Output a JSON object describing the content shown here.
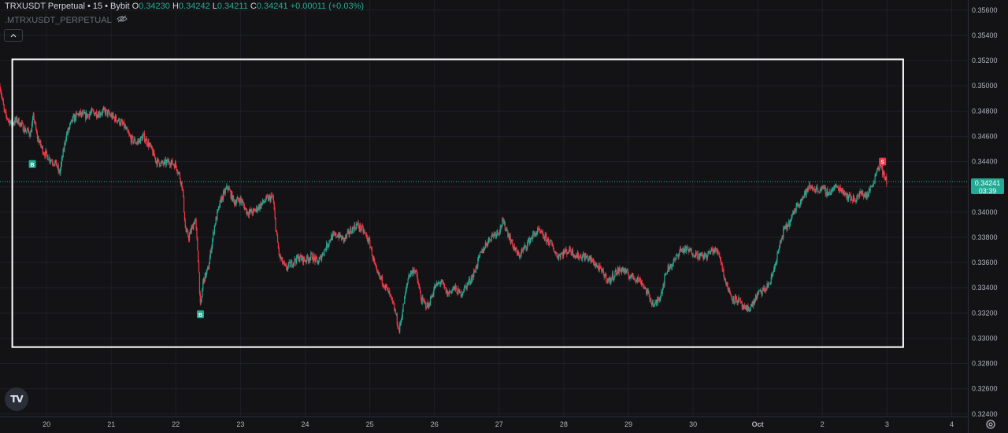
{
  "legend": {
    "symbol_line": "TRXUSDT Perpetual • 15 • Bybit",
    "open_label": "O",
    "open": "0.34230",
    "high_label": "H",
    "high": "0.34242",
    "low_label": "L",
    "low": "0.34211",
    "close_label": "C",
    "close": "0.34241",
    "change": "+0.00011 (+0.03%)",
    "indicator": ".MTRXUSDT_PERPETUAL"
  },
  "price_tag": {
    "price": "0.34241",
    "countdown": "03:39"
  },
  "logo_text": "TV",
  "colors": {
    "up": "#22ab94",
    "down": "#f23645",
    "background": "#131316",
    "grid": "#1e2027",
    "rect": "#ffffff"
  },
  "icons": [
    "eye-icon",
    "chevron-up-icon",
    "tradingview-logo",
    "gear-icon"
  ],
  "chart_data": {
    "type": "candlestick",
    "timeframe": "15",
    "y_ticks": [
      "0.35600",
      "0.35400",
      "0.35200",
      "0.35000",
      "0.34800",
      "0.34600",
      "0.34400",
      "0.34200",
      "0.34000",
      "0.33800",
      "0.33600",
      "0.33400",
      "0.33200",
      "0.33000",
      "0.32800",
      "0.32600",
      "0.32400"
    ],
    "ylim": [
      0.3238,
      0.3568
    ],
    "x_ticks": [
      "20",
      "21",
      "22",
      "23",
      "24",
      "25",
      "26",
      "27",
      "28",
      "29",
      "30",
      "Oct",
      "2",
      "3",
      "4"
    ],
    "x_tick_days": [
      20,
      21,
      22,
      23,
      24,
      25,
      26,
      27,
      28,
      29,
      30,
      31,
      32,
      33,
      34
    ],
    "xlim_days": [
      19.28,
      34.25
    ],
    "last_price": 0.34241,
    "price_path": [
      [
        19.28,
        0.35
      ],
      [
        19.35,
        0.3478
      ],
      [
        19.45,
        0.347
      ],
      [
        19.55,
        0.3473
      ],
      [
        19.65,
        0.3466
      ],
      [
        19.75,
        0.3462
      ],
      [
        19.8,
        0.3476
      ],
      [
        19.85,
        0.346
      ],
      [
        19.95,
        0.3448
      ],
      [
        20.05,
        0.3442
      ],
      [
        20.15,
        0.3438
      ],
      [
        20.2,
        0.343
      ],
      [
        20.3,
        0.346
      ],
      [
        20.4,
        0.3473
      ],
      [
        20.5,
        0.3478
      ],
      [
        20.6,
        0.3476
      ],
      [
        20.7,
        0.3479
      ],
      [
        20.8,
        0.3478
      ],
      [
        20.9,
        0.348
      ],
      [
        21.0,
        0.3476
      ],
      [
        21.1,
        0.3473
      ],
      [
        21.2,
        0.3468
      ],
      [
        21.3,
        0.3458
      ],
      [
        21.4,
        0.3455
      ],
      [
        21.5,
        0.346
      ],
      [
        21.6,
        0.3452
      ],
      [
        21.7,
        0.344
      ],
      [
        21.8,
        0.3438
      ],
      [
        21.9,
        0.344
      ],
      [
        22.0,
        0.3437
      ],
      [
        22.05,
        0.343
      ],
      [
        22.1,
        0.342
      ],
      [
        22.15,
        0.3385
      ],
      [
        22.2,
        0.338
      ],
      [
        22.3,
        0.3395
      ],
      [
        22.35,
        0.336
      ],
      [
        22.38,
        0.3322
      ],
      [
        22.42,
        0.3345
      ],
      [
        22.5,
        0.3355
      ],
      [
        22.6,
        0.339
      ],
      [
        22.7,
        0.341
      ],
      [
        22.8,
        0.342
      ],
      [
        22.9,
        0.3408
      ],
      [
        23.0,
        0.341
      ],
      [
        23.1,
        0.34
      ],
      [
        23.2,
        0.34
      ],
      [
        23.3,
        0.3405
      ],
      [
        23.4,
        0.341
      ],
      [
        23.5,
        0.3412
      ],
      [
        23.55,
        0.3385
      ],
      [
        23.6,
        0.3365
      ],
      [
        23.7,
        0.3355
      ],
      [
        23.8,
        0.336
      ],
      [
        23.9,
        0.3364
      ],
      [
        24.0,
        0.3362
      ],
      [
        24.1,
        0.3365
      ],
      [
        24.2,
        0.336
      ],
      [
        24.3,
        0.337
      ],
      [
        24.4,
        0.338
      ],
      [
        24.5,
        0.3382
      ],
      [
        24.6,
        0.3378
      ],
      [
        24.7,
        0.3385
      ],
      [
        24.8,
        0.339
      ],
      [
        24.9,
        0.3385
      ],
      [
        25.0,
        0.3375
      ],
      [
        25.1,
        0.3352
      ],
      [
        25.2,
        0.3345
      ],
      [
        25.3,
        0.3335
      ],
      [
        25.4,
        0.332
      ],
      [
        25.45,
        0.3305
      ],
      [
        25.5,
        0.332
      ],
      [
        25.6,
        0.335
      ],
      [
        25.7,
        0.3355
      ],
      [
        25.8,
        0.333
      ],
      [
        25.9,
        0.3325
      ],
      [
        26.0,
        0.334
      ],
      [
        26.1,
        0.3345
      ],
      [
        26.2,
        0.3335
      ],
      [
        26.3,
        0.334
      ],
      [
        26.4,
        0.3335
      ],
      [
        26.5,
        0.3342
      ],
      [
        26.6,
        0.335
      ],
      [
        26.7,
        0.3365
      ],
      [
        26.8,
        0.3375
      ],
      [
        26.9,
        0.3382
      ],
      [
        27.0,
        0.3385
      ],
      [
        27.05,
        0.3392
      ],
      [
        27.1,
        0.3388
      ],
      [
        27.2,
        0.3375
      ],
      [
        27.3,
        0.3365
      ],
      [
        27.4,
        0.3372
      ],
      [
        27.5,
        0.338
      ],
      [
        27.6,
        0.3385
      ],
      [
        27.7,
        0.338
      ],
      [
        27.8,
        0.3375
      ],
      [
        27.9,
        0.3365
      ],
      [
        28.0,
        0.3368
      ],
      [
        28.1,
        0.337
      ],
      [
        28.2,
        0.3365
      ],
      [
        28.3,
        0.3365
      ],
      [
        28.4,
        0.3363
      ],
      [
        28.5,
        0.3358
      ],
      [
        28.6,
        0.3352
      ],
      [
        28.7,
        0.3345
      ],
      [
        28.8,
        0.3352
      ],
      [
        28.9,
        0.3355
      ],
      [
        29.0,
        0.335
      ],
      [
        29.1,
        0.3348
      ],
      [
        29.2,
        0.3345
      ],
      [
        29.3,
        0.3335
      ],
      [
        29.4,
        0.3325
      ],
      [
        29.5,
        0.3335
      ],
      [
        29.6,
        0.3355
      ],
      [
        29.7,
        0.336
      ],
      [
        29.8,
        0.337
      ],
      [
        29.9,
        0.337
      ],
      [
        30.0,
        0.3368
      ],
      [
        30.1,
        0.3365
      ],
      [
        30.2,
        0.3365
      ],
      [
        30.3,
        0.337
      ],
      [
        30.4,
        0.3368
      ],
      [
        30.5,
        0.3345
      ],
      [
        30.6,
        0.3332
      ],
      [
        30.7,
        0.333
      ],
      [
        30.8,
        0.3322
      ],
      [
        30.9,
        0.3325
      ],
      [
        31.0,
        0.3335
      ],
      [
        31.1,
        0.3338
      ],
      [
        31.2,
        0.3345
      ],
      [
        31.3,
        0.3365
      ],
      [
        31.4,
        0.3385
      ],
      [
        31.5,
        0.3392
      ],
      [
        31.6,
        0.3405
      ],
      [
        31.7,
        0.3412
      ],
      [
        31.8,
        0.342
      ],
      [
        31.9,
        0.3418
      ],
      [
        32.0,
        0.3418
      ],
      [
        32.1,
        0.3415
      ],
      [
        32.2,
        0.342
      ],
      [
        32.3,
        0.3418
      ],
      [
        32.4,
        0.3412
      ],
      [
        32.5,
        0.341
      ],
      [
        32.6,
        0.3415
      ],
      [
        32.7,
        0.3413
      ],
      [
        32.75,
        0.342
      ],
      [
        32.8,
        0.3425
      ],
      [
        32.85,
        0.3435
      ],
      [
        32.9,
        0.3438
      ],
      [
        32.95,
        0.3428
      ],
      [
        33.0,
        0.3424
      ]
    ],
    "markers": [
      {
        "label": "B",
        "day": 19.78,
        "price": 0.3438,
        "side": "buy"
      },
      {
        "label": "B",
        "day": 22.38,
        "price": 0.3319,
        "side": "buy"
      },
      {
        "label": "S",
        "day": 32.93,
        "price": 0.344,
        "side": "sell"
      }
    ],
    "box": {
      "day_start": 19.47,
      "day_end": 33.25,
      "price_top": 0.3521,
      "price_bottom": 0.3293
    }
  }
}
